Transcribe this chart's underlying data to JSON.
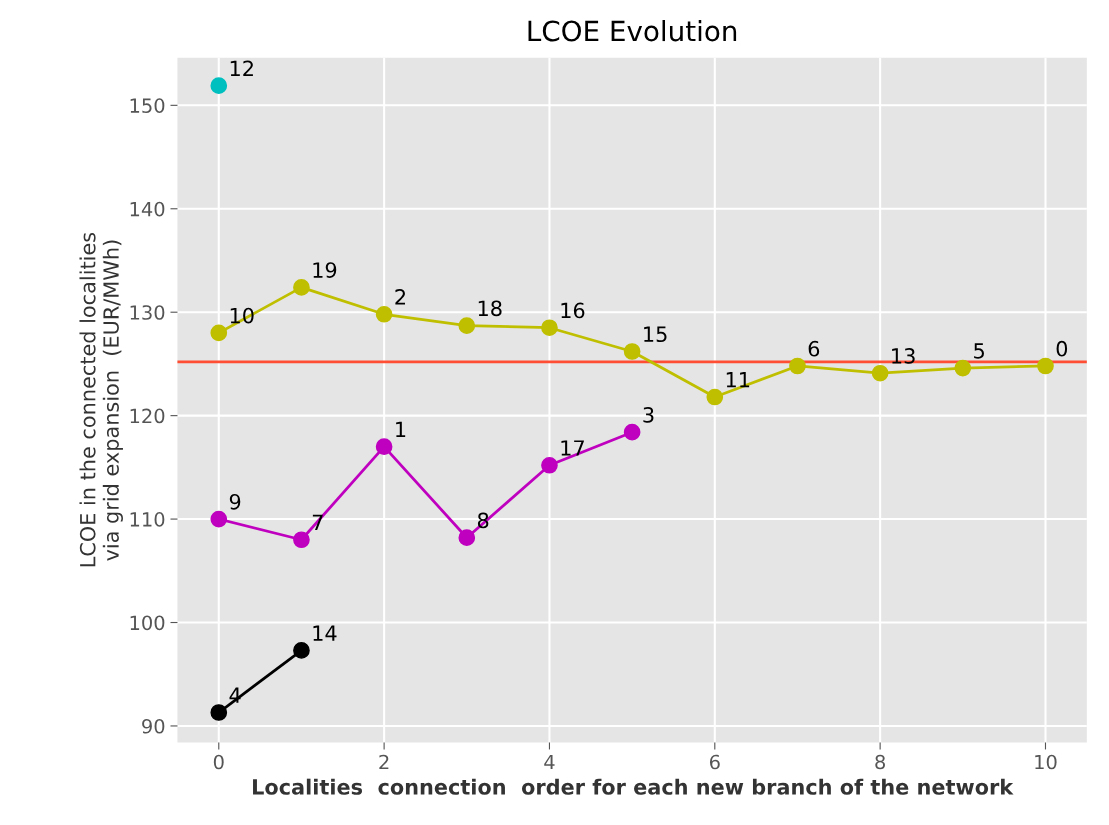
{
  "chart_data": {
    "type": "line",
    "title": "LCOE Evolution",
    "xlabel": "Localities  connection  order for each new branch of the network",
    "ylabel": "LCOE in the connected localities\nvia grid expansion  (EUR/MWh)",
    "series": [
      {
        "color": "#00bfbf",
        "x": [
          0
        ],
        "values": [
          151.9
        ]
      },
      {
        "color": "#bfbf00",
        "x": [
          0,
          1,
          2,
          3,
          4,
          5,
          6,
          7,
          8,
          9,
          10
        ],
        "values": [
          128.0,
          132.4,
          129.8,
          128.7,
          128.5,
          126.2,
          121.8,
          124.8,
          124.1,
          124.6,
          124.8
        ]
      },
      {
        "color": "#bf00bf",
        "x": [
          0,
          1,
          2,
          3,
          4,
          5
        ],
        "values": [
          110.0,
          108.0,
          117.0,
          108.2,
          115.2,
          118.4
        ]
      },
      {
        "color": "#000000",
        "x": [
          0,
          1
        ],
        "values": [
          91.3,
          97.3
        ]
      }
    ],
    "annotations": [
      {
        "text": "12",
        "x": 0,
        "y": 151.9
      },
      {
        "text": "10",
        "x": 0,
        "y": 128.0
      },
      {
        "text": "19",
        "x": 1,
        "y": 132.4
      },
      {
        "text": "2",
        "x": 2,
        "y": 129.8
      },
      {
        "text": "18",
        "x": 3,
        "y": 128.7
      },
      {
        "text": "16",
        "x": 4,
        "y": 128.5
      },
      {
        "text": "15",
        "x": 5,
        "y": 126.2
      },
      {
        "text": "11",
        "x": 6,
        "y": 121.8
      },
      {
        "text": "6",
        "x": 7,
        "y": 124.8
      },
      {
        "text": "13",
        "x": 8,
        "y": 124.1
      },
      {
        "text": "5",
        "x": 9,
        "y": 124.6
      },
      {
        "text": "0",
        "x": 10,
        "y": 124.8
      },
      {
        "text": "9",
        "x": 0,
        "y": 110.0
      },
      {
        "text": "7",
        "x": 1,
        "y": 108.0
      },
      {
        "text": "1",
        "x": 2,
        "y": 117.0
      },
      {
        "text": "8",
        "x": 3,
        "y": 108.2
      },
      {
        "text": "17",
        "x": 4,
        "y": 115.2
      },
      {
        "text": "3",
        "x": 5,
        "y": 118.4
      },
      {
        "text": "4",
        "x": 0,
        "y": 91.3
      },
      {
        "text": "14",
        "x": 1,
        "y": 97.3
      }
    ],
    "ref_lines": [
      {
        "axis": "y",
        "value": 125.2,
        "color": "#ff4e33"
      }
    ],
    "xlim": [
      -0.5,
      10.5
    ],
    "xticks": [
      0,
      2,
      4,
      6,
      8,
      10
    ],
    "ylim": [
      88.4,
      154.6
    ],
    "yticks": [
      90,
      100,
      110,
      120,
      130,
      140,
      150
    ],
    "grid": true,
    "marker": "circle",
    "line_style": "solid"
  }
}
